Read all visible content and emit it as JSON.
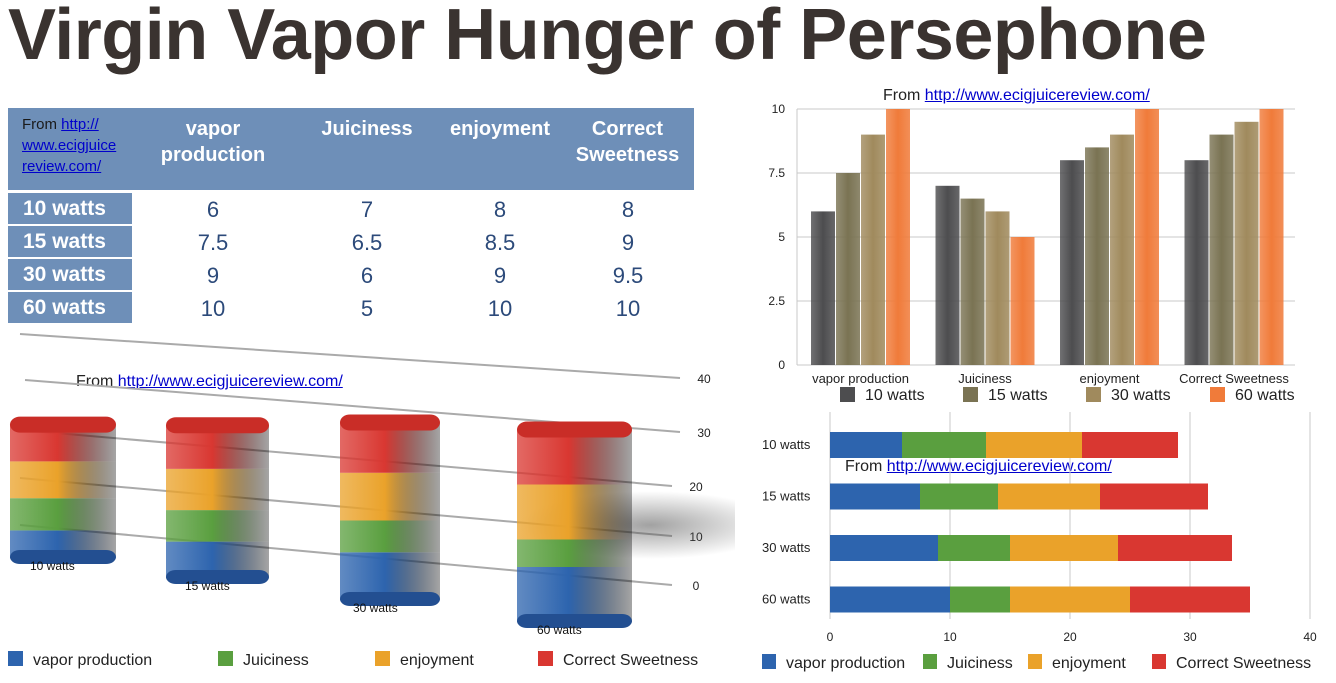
{
  "title": "Virgin Vapor Hunger of Persephone",
  "source": {
    "prefix": "From",
    "link": "http://www.ecigjuicereview.com/"
  },
  "table": {
    "source_lines": [
      "www.ecigjuice",
      "review.com/"
    ],
    "source_first_line_link": "http://",
    "columns": [
      [
        "vapor",
        "production"
      ],
      [
        "Juiciness"
      ],
      [
        "enjoyment"
      ],
      [
        "Correct",
        "Sweetness"
      ]
    ],
    "rows": [
      {
        "label": "10 watts",
        "values": [
          "6",
          "7",
          "8",
          "8"
        ]
      },
      {
        "label": "15 watts",
        "values": [
          "7.5",
          "6.5",
          "8.5",
          "9"
        ]
      },
      {
        "label": "30 watts",
        "values": [
          "9",
          "6",
          "9",
          "9.5"
        ]
      },
      {
        "label": "60 watts",
        "values": [
          "10",
          "5",
          "10",
          "10"
        ]
      }
    ]
  },
  "colors": {
    "table_header": "#6e8fb8",
    "bar_10": "#4d4d4f",
    "bar_15": "#7a7353",
    "bar_30": "#a08a5d",
    "bar_60": "#f07b3a",
    "vapor": "#2d64ae",
    "juiciness": "#5a9f3f",
    "enjoyment": "#eaa22a",
    "sweetness": "#d93731"
  },
  "chart_data": [
    {
      "type": "bar",
      "categories": [
        "vapor production",
        "Juiciness",
        "enjoyment",
        "Correct Sweetness"
      ],
      "series": [
        {
          "name": "10 watts",
          "values": [
            6,
            7,
            8,
            8
          ]
        },
        {
          "name": "15 watts",
          "values": [
            7.5,
            6.5,
            8.5,
            9
          ]
        },
        {
          "name": "30 watts",
          "values": [
            9,
            6,
            9,
            9.5
          ]
        },
        {
          "name": "60 watts",
          "values": [
            10,
            5,
            10,
            10
          ]
        }
      ],
      "ylim": [
        0,
        10
      ],
      "yticks": [
        "0",
        "2.5",
        "5",
        "7.5",
        "10"
      ],
      "legend": "bottom",
      "grid": true
    },
    {
      "type": "bar",
      "orientation": "horizontal",
      "stacked": true,
      "categories": [
        "10 watts",
        "15 watts",
        "30 watts",
        "60 watts"
      ],
      "series": [
        {
          "name": "vapor production",
          "values": [
            6,
            7.5,
            9,
            10
          ]
        },
        {
          "name": "Juiciness",
          "values": [
            7,
            6.5,
            6,
            5
          ]
        },
        {
          "name": "enjoyment",
          "values": [
            8,
            8.5,
            9,
            10
          ]
        },
        {
          "name": "Correct Sweetness",
          "values": [
            8,
            9,
            9.5,
            10
          ]
        }
      ],
      "xlim": [
        0,
        40
      ],
      "xticks": [
        "0",
        "10",
        "20",
        "30",
        "40"
      ],
      "legend": "bottom",
      "grid": true
    },
    {
      "type": "bar",
      "style": "3d",
      "stacked": true,
      "categories": [
        "10 watts",
        "15 watts",
        "30 watts",
        "60 watts"
      ],
      "series": [
        {
          "name": "vapor production",
          "values": [
            6,
            7.5,
            9,
            10
          ]
        },
        {
          "name": "Juiciness",
          "values": [
            7,
            6.5,
            6,
            5
          ]
        },
        {
          "name": "enjoyment",
          "values": [
            8,
            8.5,
            9,
            10
          ]
        },
        {
          "name": "Correct Sweetness",
          "values": [
            8,
            9,
            9.5,
            10
          ]
        }
      ],
      "ylim": [
        0,
        40
      ],
      "yticks": [
        "0",
        "10",
        "20",
        "30",
        "40"
      ],
      "legend": "bottom",
      "grid": true
    }
  ]
}
